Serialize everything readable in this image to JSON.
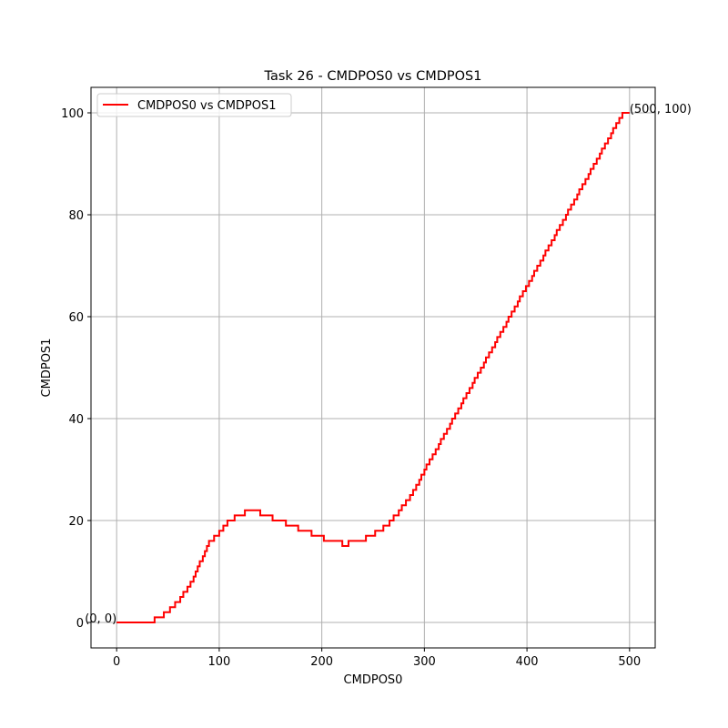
{
  "chart_data": {
    "type": "line",
    "title": "Task 26 - CMDPOS0 vs CMDPOS1",
    "xlabel": "CMDPOS0",
    "ylabel": "CMDPOS1",
    "xlim": [
      -25,
      525
    ],
    "ylim": [
      -5,
      105
    ],
    "x_ticks": [
      0,
      100,
      200,
      300,
      400,
      500
    ],
    "y_ticks": [
      0,
      20,
      40,
      60,
      80,
      100
    ],
    "grid": true,
    "legend_position": "top-left",
    "series": [
      {
        "name": "CMDPOS0 vs CMDPOS1",
        "color": "#ff0000",
        "points": [
          [
            0,
            0
          ],
          [
            37,
            0
          ],
          [
            37,
            1
          ],
          [
            46,
            1
          ],
          [
            46,
            2
          ],
          [
            52,
            2
          ],
          [
            52,
            3
          ],
          [
            57,
            3
          ],
          [
            57,
            4
          ],
          [
            62,
            4
          ],
          [
            62,
            5
          ],
          [
            65,
            5
          ],
          [
            65,
            6
          ],
          [
            69,
            6
          ],
          [
            69,
            7
          ],
          [
            72,
            7
          ],
          [
            72,
            8
          ],
          [
            75,
            8
          ],
          [
            75,
            9
          ],
          [
            77,
            9
          ],
          [
            77,
            10
          ],
          [
            79,
            10
          ],
          [
            79,
            11
          ],
          [
            81,
            11
          ],
          [
            81,
            12
          ],
          [
            84,
            12
          ],
          [
            84,
            13
          ],
          [
            86,
            13
          ],
          [
            86,
            14
          ],
          [
            88,
            14
          ],
          [
            88,
            15
          ],
          [
            90,
            15
          ],
          [
            90,
            16
          ],
          [
            95,
            16
          ],
          [
            95,
            17
          ],
          [
            100,
            17
          ],
          [
            100,
            18
          ],
          [
            104,
            18
          ],
          [
            104,
            19
          ],
          [
            108,
            19
          ],
          [
            108,
            20
          ],
          [
            115,
            20
          ],
          [
            115,
            21
          ],
          [
            125,
            21
          ],
          [
            125,
            22
          ],
          [
            140,
            22
          ],
          [
            140,
            21
          ],
          [
            152,
            21
          ],
          [
            152,
            20
          ],
          [
            165,
            20
          ],
          [
            165,
            19
          ],
          [
            177,
            19
          ],
          [
            177,
            18
          ],
          [
            190,
            18
          ],
          [
            190,
            17
          ],
          [
            202,
            17
          ],
          [
            202,
            16
          ],
          [
            220,
            16
          ],
          [
            220,
            15
          ],
          [
            226,
            15
          ],
          [
            226,
            16
          ],
          [
            243,
            16
          ],
          [
            243,
            17
          ],
          [
            252,
            17
          ],
          [
            252,
            18
          ],
          [
            260,
            18
          ],
          [
            260,
            19
          ],
          [
            266,
            19
          ],
          [
            266,
            20
          ],
          [
            270,
            20
          ],
          [
            270,
            21
          ],
          [
            275,
            21
          ],
          [
            275,
            22
          ],
          [
            278,
            22
          ],
          [
            278,
            23
          ],
          [
            282,
            23
          ],
          [
            282,
            24
          ],
          [
            286,
            24
          ],
          [
            286,
            25
          ],
          [
            289,
            25
          ],
          [
            289,
            26
          ],
          [
            292,
            26
          ],
          [
            292,
            27
          ],
          [
            295,
            27
          ],
          [
            295,
            28
          ],
          [
            297,
            28
          ],
          [
            297,
            29
          ],
          [
            300,
            29
          ],
          [
            300,
            30
          ],
          [
            302,
            30
          ],
          [
            302,
            31
          ],
          [
            305,
            31
          ],
          [
            305,
            32
          ],
          [
            308,
            32
          ],
          [
            308,
            33
          ],
          [
            311,
            33
          ],
          [
            311,
            34
          ],
          [
            314,
            34
          ],
          [
            314,
            35
          ],
          [
            316,
            35
          ],
          [
            316,
            36
          ],
          [
            319,
            36
          ],
          [
            319,
            37
          ],
          [
            322,
            37
          ],
          [
            322,
            38
          ],
          [
            325,
            38
          ],
          [
            325,
            39
          ],
          [
            327,
            39
          ],
          [
            327,
            40
          ],
          [
            330,
            40
          ],
          [
            330,
            41
          ],
          [
            333,
            41
          ],
          [
            333,
            42
          ],
          [
            336,
            42
          ],
          [
            336,
            43
          ],
          [
            338,
            43
          ],
          [
            338,
            44
          ],
          [
            341,
            44
          ],
          [
            341,
            45
          ],
          [
            344,
            45
          ],
          [
            344,
            46
          ],
          [
            347,
            46
          ],
          [
            347,
            47
          ],
          [
            349,
            47
          ],
          [
            349,
            48
          ],
          [
            352,
            48
          ],
          [
            352,
            49
          ],
          [
            355,
            49
          ],
          [
            355,
            50
          ],
          [
            358,
            50
          ],
          [
            358,
            51
          ],
          [
            360,
            51
          ],
          [
            360,
            52
          ],
          [
            363,
            52
          ],
          [
            363,
            53
          ],
          [
            366,
            53
          ],
          [
            366,
            54
          ],
          [
            369,
            54
          ],
          [
            369,
            55
          ],
          [
            371,
            55
          ],
          [
            371,
            56
          ],
          [
            374,
            56
          ],
          [
            374,
            57
          ],
          [
            377,
            57
          ],
          [
            377,
            58
          ],
          [
            380,
            58
          ],
          [
            380,
            59
          ],
          [
            382,
            59
          ],
          [
            382,
            60
          ],
          [
            385,
            60
          ],
          [
            385,
            61
          ],
          [
            388,
            61
          ],
          [
            388,
            62
          ],
          [
            391,
            62
          ],
          [
            391,
            63
          ],
          [
            393,
            63
          ],
          [
            393,
            64
          ],
          [
            396,
            64
          ],
          [
            396,
            65
          ],
          [
            399,
            65
          ],
          [
            399,
            66
          ],
          [
            402,
            66
          ],
          [
            402,
            67
          ],
          [
            405,
            67
          ],
          [
            405,
            68
          ],
          [
            407,
            68
          ],
          [
            407,
            69
          ],
          [
            410,
            69
          ],
          [
            410,
            70
          ],
          [
            413,
            70
          ],
          [
            413,
            71
          ],
          [
            416,
            71
          ],
          [
            416,
            72
          ],
          [
            418,
            72
          ],
          [
            418,
            73
          ],
          [
            421,
            73
          ],
          [
            421,
            74
          ],
          [
            424,
            74
          ],
          [
            424,
            75
          ],
          [
            427,
            75
          ],
          [
            427,
            76
          ],
          [
            429,
            76
          ],
          [
            429,
            77
          ],
          [
            432,
            77
          ],
          [
            432,
            78
          ],
          [
            435,
            78
          ],
          [
            435,
            79
          ],
          [
            438,
            79
          ],
          [
            438,
            80
          ],
          [
            440,
            80
          ],
          [
            440,
            81
          ],
          [
            443,
            81
          ],
          [
            443,
            82
          ],
          [
            446,
            82
          ],
          [
            446,
            83
          ],
          [
            449,
            83
          ],
          [
            449,
            84
          ],
          [
            451,
            84
          ],
          [
            451,
            85
          ],
          [
            454,
            85
          ],
          [
            454,
            86
          ],
          [
            457,
            86
          ],
          [
            457,
            87
          ],
          [
            460,
            87
          ],
          [
            460,
            88
          ],
          [
            462,
            88
          ],
          [
            462,
            89
          ],
          [
            465,
            89
          ],
          [
            465,
            90
          ],
          [
            468,
            90
          ],
          [
            468,
            91
          ],
          [
            471,
            91
          ],
          [
            471,
            92
          ],
          [
            473,
            92
          ],
          [
            473,
            93
          ],
          [
            476,
            93
          ],
          [
            476,
            94
          ],
          [
            479,
            94
          ],
          [
            479,
            95
          ],
          [
            482,
            95
          ],
          [
            482,
            96
          ],
          [
            484,
            96
          ],
          [
            484,
            97
          ],
          [
            487,
            97
          ],
          [
            487,
            98
          ],
          [
            490,
            98
          ],
          [
            490,
            99
          ],
          [
            493,
            99
          ],
          [
            493,
            100
          ],
          [
            500,
            100
          ]
        ]
      }
    ],
    "annotations": [
      {
        "text": "(0, 0)",
        "x": 0,
        "y": 0,
        "color": "#ff0000",
        "anchor": "end"
      },
      {
        "text": "(500, 100)",
        "x": 500,
        "y": 100,
        "color": "#ff0000",
        "anchor": "start"
      }
    ]
  }
}
